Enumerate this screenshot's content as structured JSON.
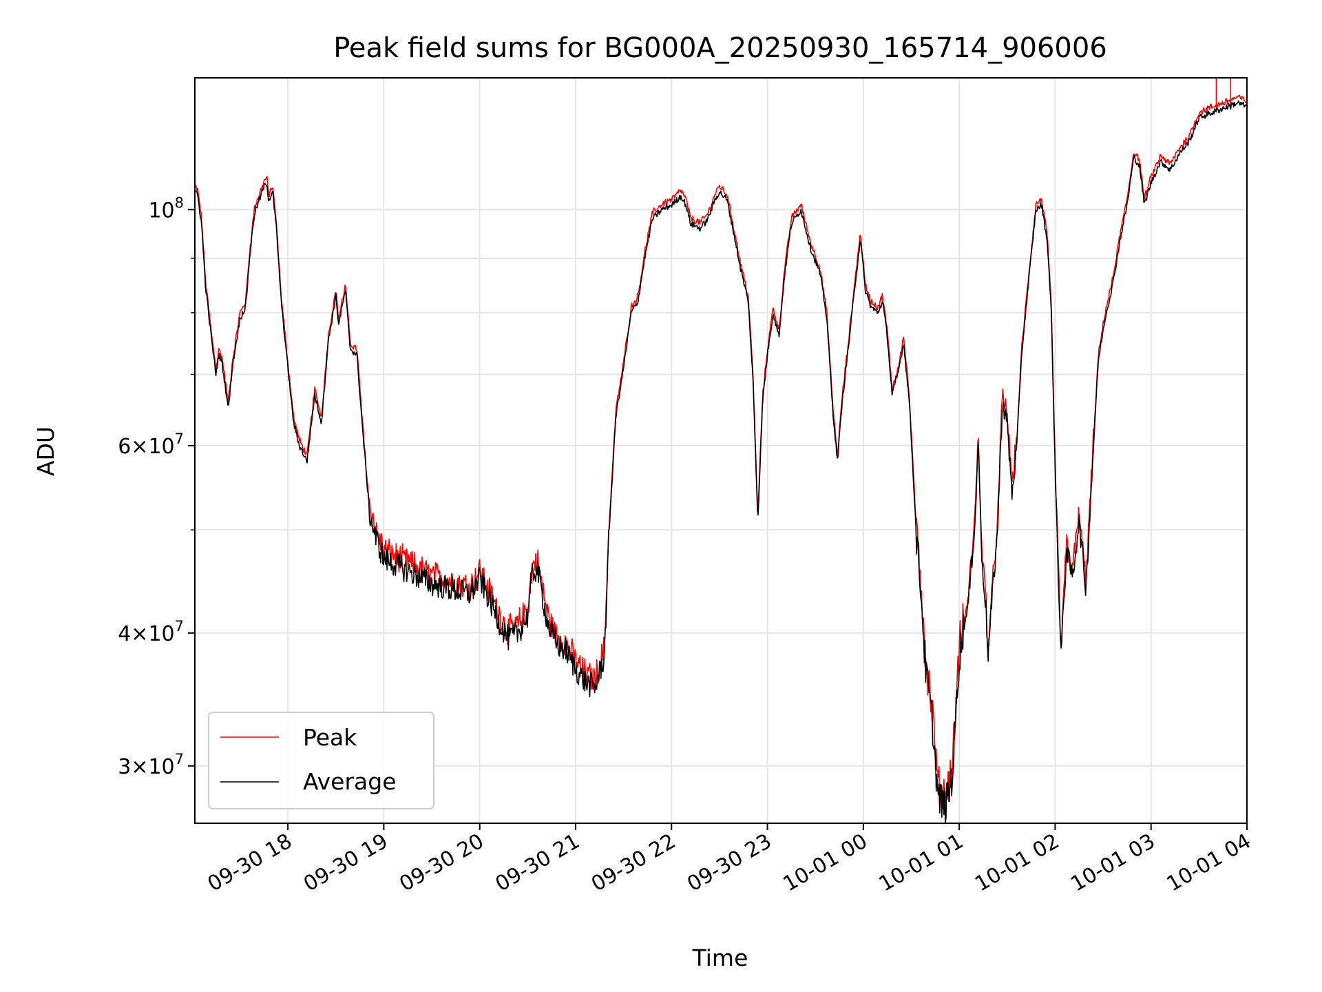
{
  "chart_data": {
    "type": "line",
    "title": "Peak field sums for BG000A_20250930_165714_906006",
    "xlabel": "Time",
    "ylabel": "ADU",
    "yscale": "log",
    "ylim": [
      26500000,
      133000000
    ],
    "xlim_hours": [
      17.03,
      28.0
    ],
    "grid": true,
    "legend_position": "lower-left",
    "x_ticks": [
      {
        "hour": 18,
        "label": "09-30 18"
      },
      {
        "hour": 19,
        "label": "09-30 19"
      },
      {
        "hour": 20,
        "label": "09-30 20"
      },
      {
        "hour": 21,
        "label": "09-30 21"
      },
      {
        "hour": 22,
        "label": "09-30 22"
      },
      {
        "hour": 23,
        "label": "09-30 23"
      },
      {
        "hour": 24,
        "label": "10-01 00"
      },
      {
        "hour": 25,
        "label": "10-01 01"
      },
      {
        "hour": 26,
        "label": "10-01 02"
      },
      {
        "hour": 27,
        "label": "10-01 03"
      },
      {
        "hour": 28,
        "label": "10-01 04"
      }
    ],
    "y_ticks": [
      {
        "value": 30000000,
        "base": "3",
        "exp": "7"
      },
      {
        "value": 40000000,
        "base": "4",
        "exp": "7"
      },
      {
        "value": 60000000,
        "base": "6",
        "exp": "7"
      },
      {
        "value": 100000000,
        "base": "",
        "exp": "8"
      }
    ],
    "y_minor": [
      50000000,
      70000000,
      80000000,
      90000000
    ],
    "series": [
      {
        "name": "Peak",
        "color": "#ff0000",
        "offset": 1.01,
        "spikes": [
          [
            27.68,
            133000000
          ],
          [
            27.83,
            133000000
          ]
        ]
      },
      {
        "name": "Average",
        "color": "#000000",
        "offset": 1.0,
        "spikes": []
      }
    ],
    "profile": [
      [
        17.03,
        104000000
      ],
      [
        17.06,
        103000000
      ],
      [
        17.1,
        97000000
      ],
      [
        17.14,
        85000000
      ],
      [
        17.2,
        76000000
      ],
      [
        17.25,
        70000000
      ],
      [
        17.28,
        73000000
      ],
      [
        17.31,
        72000000
      ],
      [
        17.35,
        68000000
      ],
      [
        17.38,
        65000000
      ],
      [
        17.42,
        71000000
      ],
      [
        17.5,
        79000000
      ],
      [
        17.56,
        81000000
      ],
      [
        17.6,
        90000000
      ],
      [
        17.65,
        99000000
      ],
      [
        17.7,
        102000000
      ],
      [
        17.75,
        105000000
      ],
      [
        17.78,
        106000000
      ],
      [
        17.8,
        102000000
      ],
      [
        17.84,
        104000000
      ],
      [
        17.88,
        96000000
      ],
      [
        17.93,
        82000000
      ],
      [
        18.0,
        71000000
      ],
      [
        18.06,
        63000000
      ],
      [
        18.12,
        60000000
      ],
      [
        18.2,
        58000000
      ],
      [
        18.28,
        67000000
      ],
      [
        18.35,
        63000000
      ],
      [
        18.42,
        75000000
      ],
      [
        18.5,
        83000000
      ],
      [
        18.53,
        78000000
      ],
      [
        18.6,
        84000000
      ],
      [
        18.65,
        74000000
      ],
      [
        18.72,
        73000000
      ],
      [
        18.78,
        62000000
      ],
      [
        18.85,
        52000000
      ],
      [
        18.92,
        49000000
      ],
      [
        19.0,
        47000000
      ],
      [
        19.1,
        46500000
      ],
      [
        19.3,
        45500000
      ],
      [
        19.5,
        44500000
      ],
      [
        19.7,
        44000000
      ],
      [
        19.9,
        43500000
      ],
      [
        20.0,
        45000000
      ],
      [
        20.1,
        43000000
      ],
      [
        20.2,
        41000000
      ],
      [
        20.3,
        39500000
      ],
      [
        20.4,
        40000000
      ],
      [
        20.5,
        41500000
      ],
      [
        20.55,
        45500000
      ],
      [
        20.6,
        46000000
      ],
      [
        20.65,
        43500000
      ],
      [
        20.72,
        40500000
      ],
      [
        20.8,
        39000000
      ],
      [
        20.9,
        38500000
      ],
      [
        21.0,
        37000000
      ],
      [
        21.1,
        36000000
      ],
      [
        21.2,
        35500000
      ],
      [
        21.3,
        38000000
      ],
      [
        21.35,
        50000000
      ],
      [
        21.42,
        64000000
      ],
      [
        21.5,
        71000000
      ],
      [
        21.58,
        80000000
      ],
      [
        21.65,
        82000000
      ],
      [
        21.72,
        90000000
      ],
      [
        21.8,
        98000000
      ],
      [
        21.9,
        100000000
      ],
      [
        22.0,
        101000000
      ],
      [
        22.1,
        103000000
      ],
      [
        22.15,
        101000000
      ],
      [
        22.2,
        97000000
      ],
      [
        22.3,
        96000000
      ],
      [
        22.38,
        98000000
      ],
      [
        22.45,
        102000000
      ],
      [
        22.5,
        104000000
      ],
      [
        22.58,
        102000000
      ],
      [
        22.65,
        95000000
      ],
      [
        22.72,
        88000000
      ],
      [
        22.8,
        82000000
      ],
      [
        22.85,
        69000000
      ],
      [
        22.9,
        51000000
      ],
      [
        22.95,
        66000000
      ],
      [
        23.0,
        73000000
      ],
      [
        23.06,
        80000000
      ],
      [
        23.12,
        76000000
      ],
      [
        23.18,
        87000000
      ],
      [
        23.25,
        97000000
      ],
      [
        23.35,
        100000000
      ],
      [
        23.45,
        92000000
      ],
      [
        23.55,
        87000000
      ],
      [
        23.62,
        79000000
      ],
      [
        23.68,
        65000000
      ],
      [
        23.73,
        58000000
      ],
      [
        23.78,
        66000000
      ],
      [
        23.85,
        75000000
      ],
      [
        23.92,
        86000000
      ],
      [
        23.97,
        94000000
      ],
      [
        24.02,
        84000000
      ],
      [
        24.08,
        81000000
      ],
      [
        24.15,
        80000000
      ],
      [
        24.2,
        82000000
      ],
      [
        24.25,
        76000000
      ],
      [
        24.3,
        67000000
      ],
      [
        24.36,
        70000000
      ],
      [
        24.42,
        75000000
      ],
      [
        24.48,
        66000000
      ],
      [
        24.55,
        50000000
      ],
      [
        24.6,
        44000000
      ],
      [
        24.65,
        37000000
      ],
      [
        24.72,
        33000000
      ],
      [
        24.78,
        28000000
      ],
      [
        24.86,
        27500000
      ],
      [
        24.93,
        29500000
      ],
      [
        25.0,
        38000000
      ],
      [
        25.1,
        43000000
      ],
      [
        25.17,
        52000000
      ],
      [
        25.2,
        61000000
      ],
      [
        25.23,
        48000000
      ],
      [
        25.28,
        42000000
      ],
      [
        25.3,
        38000000
      ],
      [
        25.35,
        44000000
      ],
      [
        25.4,
        50000000
      ],
      [
        25.45,
        66000000
      ],
      [
        25.5,
        63000000
      ],
      [
        25.55,
        54000000
      ],
      [
        25.6,
        60000000
      ],
      [
        25.65,
        73000000
      ],
      [
        25.72,
        85000000
      ],
      [
        25.8,
        100000000
      ],
      [
        25.86,
        101000000
      ],
      [
        25.92,
        93000000
      ],
      [
        25.96,
        80000000
      ],
      [
        26.0,
        57000000
      ],
      [
        26.06,
        38000000
      ],
      [
        26.12,
        48000000
      ],
      [
        26.18,
        45000000
      ],
      [
        26.25,
        51000000
      ],
      [
        26.32,
        44000000
      ],
      [
        26.4,
        60000000
      ],
      [
        26.45,
        72000000
      ],
      [
        26.52,
        79000000
      ],
      [
        26.6,
        85000000
      ],
      [
        26.68,
        94000000
      ],
      [
        26.75,
        101000000
      ],
      [
        26.82,
        112000000
      ],
      [
        26.88,
        110000000
      ],
      [
        26.93,
        101000000
      ],
      [
        27.0,
        106000000
      ],
      [
        27.1,
        111000000
      ],
      [
        27.2,
        109000000
      ],
      [
        27.3,
        113000000
      ],
      [
        27.4,
        116000000
      ],
      [
        27.5,
        122000000
      ],
      [
        27.6,
        123000000
      ],
      [
        27.7,
        124000000
      ],
      [
        27.8,
        125000000
      ],
      [
        27.9,
        126000000
      ],
      [
        28.0,
        125000000
      ]
    ]
  }
}
